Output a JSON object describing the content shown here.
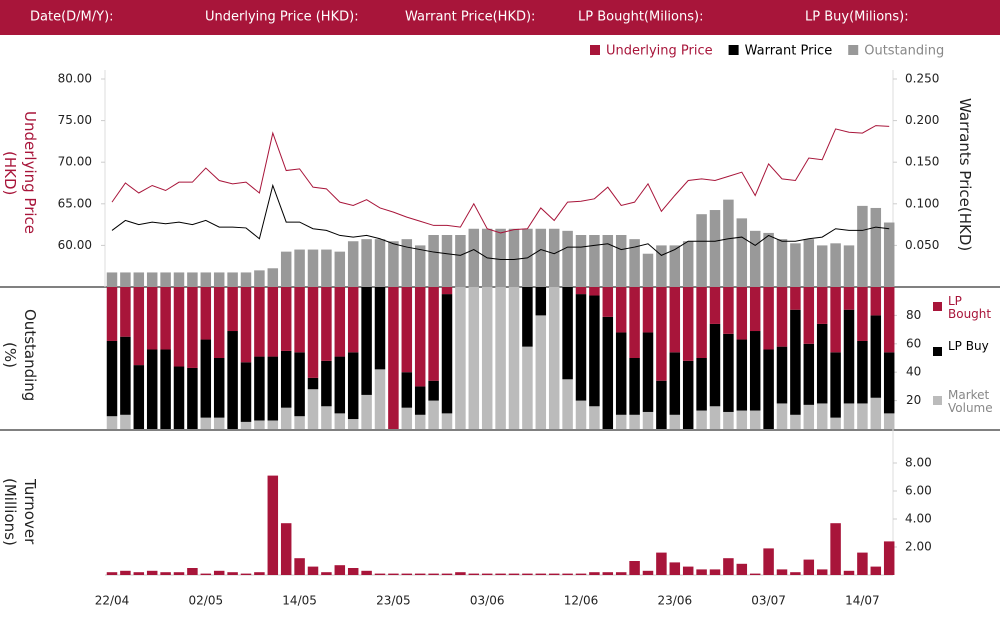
{
  "header": {
    "labels": [
      "Date(D/M/Y):",
      "Underlying Price (HKD):",
      "Warrant  Price(HKD):",
      "LP Bought(Milions):",
      "LP Buy(Milions):"
    ]
  },
  "chart_data": [
    {
      "type": "combo",
      "ylabel": "Underlying Price (HKD)",
      "y2label": "Warrants  Price(HKD)",
      "ylim": [
        55,
        80
      ],
      "yticks": [
        {
          "value": 60,
          "label": "60.00"
        },
        {
          "value": 65,
          "label": "65.00"
        },
        {
          "value": 70,
          "label": "70.00"
        },
        {
          "value": 75,
          "label": "75.00"
        },
        {
          "value": 80,
          "label": "80.00"
        }
      ],
      "y2lim": [
        0,
        0.25
      ],
      "y2ticks": [
        {
          "value": 0.05,
          "label": "0.050"
        },
        {
          "value": 0.1,
          "label": "0.100"
        },
        {
          "value": 0.15,
          "label": "0.150"
        },
        {
          "value": 0.2,
          "label": "0.200"
        },
        {
          "value": 0.25,
          "label": "0.250"
        }
      ],
      "y3lim": [
        0,
        100
      ],
      "series": [
        {
          "name": "Underlying Price",
          "color": "#a8153a",
          "kind": "line",
          "values": [
            65.2,
            67.5,
            66.3,
            67.2,
            66.6,
            67.6,
            67.6,
            69.3,
            67.8,
            67.4,
            67.6,
            66.3,
            73.5,
            69.0,
            69.2,
            67.0,
            66.8,
            65.2,
            64.8,
            65.5,
            64.5,
            64.0,
            63.4,
            62.9,
            62.4,
            62.4,
            62.2,
            65.0,
            62.0,
            61.5,
            61.9,
            62.0,
            64.5,
            63.0,
            65.2,
            65.3,
            65.6,
            67.0,
            64.8,
            65.2,
            67.4,
            64.1,
            66.0,
            67.8,
            68.0,
            67.8,
            68.3,
            68.8,
            66.0,
            69.8,
            68.0,
            67.8,
            70.5,
            70.3,
            74.0,
            73.6,
            73.5,
            74.4,
            74.3
          ]
        },
        {
          "name": "Warrant  Price",
          "color": "#000000",
          "kind": "line",
          "axis": "y2",
          "values": [
            0.068,
            0.08,
            0.075,
            0.078,
            0.076,
            0.078,
            0.075,
            0.08,
            0.072,
            0.072,
            0.071,
            0.058,
            0.122,
            0.078,
            0.078,
            0.07,
            0.068,
            0.062,
            0.06,
            0.062,
            0.058,
            0.052,
            0.048,
            0.045,
            0.042,
            0.04,
            0.038,
            0.045,
            0.035,
            0.033,
            0.033,
            0.035,
            0.045,
            0.04,
            0.048,
            0.048,
            0.05,
            0.052,
            0.045,
            0.048,
            0.052,
            0.038,
            0.045,
            0.055,
            0.055,
            0.055,
            0.058,
            0.06,
            0.05,
            0.062,
            0.055,
            0.055,
            0.058,
            0.06,
            0.07,
            0.068,
            0.068,
            0.072,
            0.07
          ]
        },
        {
          "name": "Outstanding",
          "color": "#999999",
          "kind": "bar",
          "axis": "y3",
          "values": [
            7,
            7,
            7,
            7,
            7,
            7,
            7,
            7,
            7,
            7,
            7,
            8,
            9,
            17,
            18,
            18,
            18,
            17,
            22,
            23,
            23,
            22,
            23,
            20,
            25,
            25,
            25,
            28,
            28,
            28,
            28,
            28,
            28,
            28,
            27,
            25,
            25,
            25,
            25,
            23,
            16,
            20,
            20,
            22,
            35,
            37,
            42,
            33,
            27,
            26,
            23,
            21,
            23,
            20,
            21,
            20,
            39,
            38,
            31
          ]
        }
      ]
    },
    {
      "type": "stacked_bar",
      "ylabel": "Outstanding (%)",
      "ylim": [
        0,
        100
      ],
      "yticks": [
        20,
        40,
        60,
        80
      ],
      "series": [
        {
          "name": "Market Volume",
          "color": "#bbbbbb",
          "values": [
            9,
            10,
            0,
            0,
            0,
            0,
            0,
            8,
            8,
            0,
            5,
            6,
            6,
            15,
            9,
            28,
            16,
            11,
            7,
            24,
            42,
            0,
            15,
            10,
            20,
            11,
            100,
            100,
            100,
            100,
            100,
            58,
            80,
            100,
            35,
            20,
            16,
            0,
            10,
            10,
            12,
            0,
            10,
            0,
            13,
            16,
            12,
            13,
            13,
            0,
            18,
            10,
            17,
            18,
            8,
            18,
            18,
            22,
            11
          ]
        },
        {
          "name": "LP Buy",
          "color": "#000000",
          "values": [
            53,
            55,
            45,
            56,
            56,
            44,
            43,
            55,
            42,
            69,
            42,
            45,
            45,
            40,
            45,
            8,
            32,
            40,
            47,
            76,
            58,
            0,
            25,
            20,
            14,
            84,
            0,
            0,
            0,
            0,
            0,
            42,
            20,
            0,
            65,
            75,
            78,
            79,
            58,
            40,
            56,
            34,
            44,
            48,
            37,
            58,
            55,
            50,
            56,
            56,
            40,
            74,
            43,
            56,
            46,
            66,
            44,
            58,
            43
          ]
        },
        {
          "name": "LP Bought",
          "color": "#a8153a",
          "values": [
            38,
            35,
            55,
            44,
            44,
            56,
            57,
            37,
            50,
            31,
            53,
            49,
            49,
            45,
            46,
            64,
            52,
            49,
            46,
            0,
            0,
            100,
            60,
            70,
            66,
            5,
            0,
            0,
            0,
            0,
            0,
            0,
            0,
            0,
            0,
            5,
            6,
            21,
            32,
            50,
            32,
            66,
            46,
            52,
            50,
            26,
            33,
            37,
            31,
            44,
            42,
            16,
            40,
            26,
            46,
            16,
            38,
            20,
            46
          ]
        }
      ]
    },
    {
      "type": "bar",
      "ylabel": "Turnover (Millions)",
      "color": "#a8153a",
      "ylim": [
        0,
        9
      ],
      "yticks": [
        {
          "value": 2,
          "label": "2.00"
        },
        {
          "value": 4,
          "label": "4.00"
        },
        {
          "value": 6,
          "label": "6.00"
        },
        {
          "value": 8,
          "label": "8.00"
        }
      ],
      "categories": [
        "22/04",
        null,
        null,
        null,
        null,
        null,
        null,
        "02/05",
        null,
        null,
        null,
        null,
        null,
        null,
        "14/05",
        null,
        null,
        null,
        null,
        null,
        null,
        "23/05",
        null,
        null,
        null,
        null,
        null,
        null,
        "03/06",
        null,
        null,
        null,
        null,
        null,
        null,
        "12/06",
        null,
        null,
        null,
        null,
        null,
        null,
        "23/06",
        null,
        null,
        null,
        null,
        null,
        null,
        "03/07",
        null,
        null,
        null,
        null,
        null,
        null,
        "14/07",
        null,
        null
      ],
      "values": [
        0.2,
        0.3,
        0.2,
        0.3,
        0.2,
        0.2,
        0.5,
        0.1,
        0.3,
        0.2,
        0.1,
        0.2,
        7.1,
        3.7,
        1.2,
        0.6,
        0.2,
        0.7,
        0.5,
        0.3,
        0.1,
        0.1,
        0.1,
        0.1,
        0.1,
        0.1,
        0.2,
        0.1,
        0.1,
        0.1,
        0.1,
        0.1,
        0.1,
        0.1,
        0.1,
        0.1,
        0.2,
        0.2,
        0.2,
        1.0,
        0.3,
        1.6,
        0.9,
        0.6,
        0.4,
        0.4,
        1.2,
        0.8,
        0.1,
        1.9,
        0.4,
        0.2,
        1.1,
        0.4,
        3.7,
        0.3,
        1.6,
        0.6,
        2.4
      ]
    }
  ]
}
